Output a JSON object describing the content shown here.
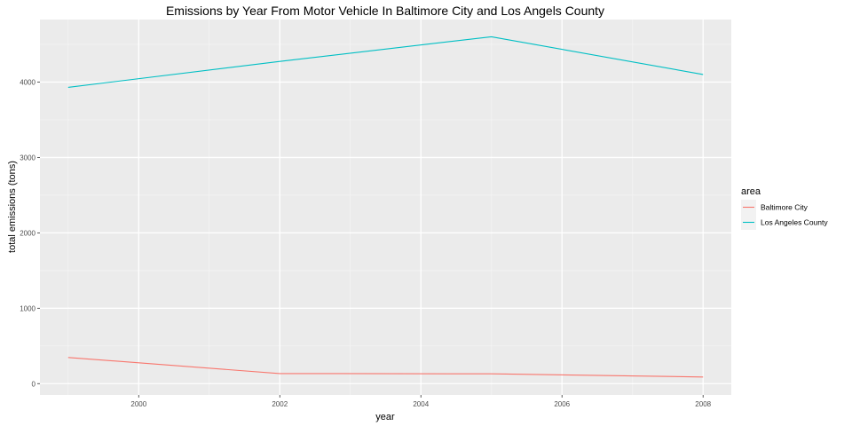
{
  "chart_data": {
    "type": "line",
    "title": "Emissions by Year From Motor Vehicle In Baltimore City and Los Angels County",
    "xlabel": "year",
    "ylabel": "total emissions (tons)",
    "x": [
      1999,
      2002,
      2005,
      2008
    ],
    "xlim": [
      1998.6,
      2008.4
    ],
    "ylim": [
      -150,
      4830
    ],
    "xticks": [
      2000,
      2002,
      2004,
      2006,
      2008
    ],
    "yticks": [
      0,
      1000,
      2000,
      3000,
      4000
    ],
    "grid": true,
    "legend": {
      "title": "area",
      "placement": "right"
    },
    "series": [
      {
        "name": "Baltimore City",
        "color": "#F8766D",
        "values": [
          346.8,
          134.3,
          130.4,
          88.3
        ]
      },
      {
        "name": "Los Angeles County",
        "color": "#00BFC4",
        "values": [
          3931.1,
          4274.0,
          4601.4,
          4101.3
        ]
      }
    ]
  }
}
